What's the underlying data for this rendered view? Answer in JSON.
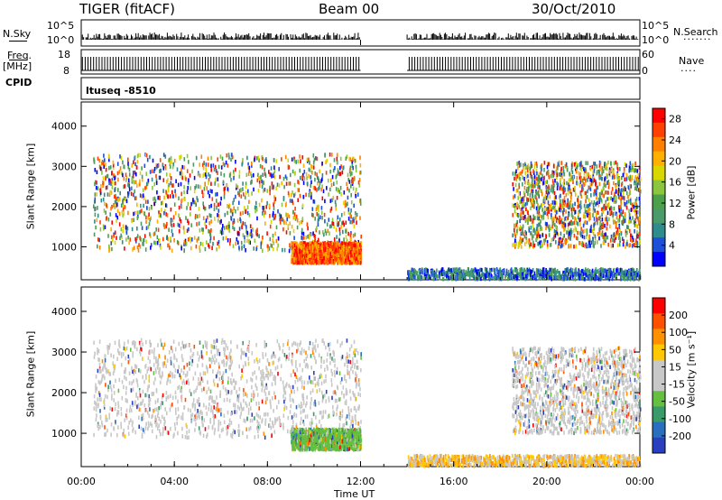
{
  "header": {
    "radar_title": "TIGER (fitACF)",
    "beam": "Beam 00",
    "date": "30/Oct/2010"
  },
  "top_panels": {
    "nsky_label": "N.Sky",
    "nsky_ticks": [
      "10^5",
      "10^0"
    ],
    "nsearch_label": "N.Search",
    "nsearch_ticks": [
      "10^5",
      "10^0"
    ],
    "freq_label_1": "Freq.",
    "freq_label_2": "[MHz]",
    "freq_ticks": [
      "18",
      "8"
    ],
    "nave_label": "Nave",
    "nave_ticks": [
      "60",
      "0"
    ],
    "cpid_label": "CPID",
    "cpid_value": "ltuseq -8510"
  },
  "chart_data": [
    {
      "type": "heatmap",
      "title": "",
      "xlabel": "Time UT",
      "ylabel": "Slant Range [km]",
      "x_ticks": [
        "00:00",
        "04:00",
        "08:00",
        "12:00",
        "16:00",
        "20:00",
        "00:00"
      ],
      "x_range_hours": [
        0,
        24
      ],
      "y_ticks": [
        "1000",
        "2000",
        "3000",
        "4000"
      ],
      "ylim": [
        180,
        4600
      ],
      "data_gap_hours": [
        12.0,
        14.0
      ],
      "colorbar": {
        "label": "Power [dB]",
        "ticks": [
          "4",
          "8",
          "12",
          "16",
          "20",
          "24",
          "28"
        ],
        "range": [
          0,
          30
        ],
        "colors": [
          "#0000ff",
          "#1e4fd8",
          "#2f8c8c",
          "#4a9a6a",
          "#4ca04c",
          "#8cc63f",
          "#d8d800",
          "#ffb000",
          "#ff8000",
          "#ff4000",
          "#ff0000"
        ]
      },
      "echo_regions": [
        {
          "t_start": 0.5,
          "t_end": 12.0,
          "r_min": 900,
          "r_max": 3300,
          "level": "mixed"
        },
        {
          "t_start": 9.0,
          "t_end": 12.0,
          "r_min": 600,
          "r_max": 1100,
          "level": "high"
        },
        {
          "t_start": 14.0,
          "t_end": 24.0,
          "r_min": 200,
          "r_max": 450,
          "level": "low"
        },
        {
          "t_start": 18.5,
          "t_end": 24.0,
          "r_min": 1000,
          "r_max": 3100,
          "level": "mixed"
        }
      ]
    },
    {
      "type": "heatmap",
      "title": "",
      "xlabel": "Time UT",
      "ylabel": "Slant Range [km]",
      "x_ticks": [
        "00:00",
        "04:00",
        "08:00",
        "12:00",
        "16:00",
        "20:00",
        "00:00"
      ],
      "x_range_hours": [
        0,
        24
      ],
      "y_ticks": [
        "1000",
        "2000",
        "3000",
        "4000"
      ],
      "ylim": [
        180,
        4600
      ],
      "data_gap_hours": [
        12.0,
        14.0
      ],
      "colorbar": {
        "label": "Velocity [m s⁻¹]",
        "ticks": [
          "200",
          "100",
          "50",
          "15",
          "-15",
          "-50",
          "-100",
          "-200"
        ],
        "range": [
          -250,
          250
        ],
        "colors": [
          "#2a3fbf",
          "#2a6fbf",
          "#3a9a6a",
          "#66c040",
          "#c8c8c8",
          "#c8c8c8",
          "#ffc800",
          "#ff9000",
          "#ff5000",
          "#ff0000"
        ]
      },
      "echo_regions": [
        {
          "t_start": 0.5,
          "t_end": 12.0,
          "r_min": 900,
          "r_max": 3300,
          "level": "gray"
        },
        {
          "t_start": 9.0,
          "t_end": 12.0,
          "r_min": 600,
          "r_max": 1100,
          "level": "green"
        },
        {
          "t_start": 14.0,
          "t_end": 24.0,
          "r_min": 200,
          "r_max": 450,
          "level": "orange"
        },
        {
          "t_start": 18.5,
          "t_end": 24.0,
          "r_min": 1000,
          "r_max": 3100,
          "level": "gray"
        }
      ]
    }
  ]
}
